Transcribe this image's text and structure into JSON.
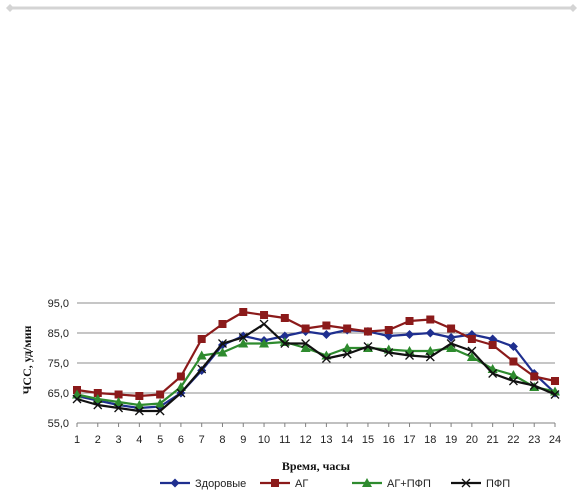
{
  "chart_data": {
    "type": "line",
    "title": "",
    "xlabel": "Время, часы",
    "ylabel": "ЧСС, уд/мин",
    "x": [
      1,
      2,
      3,
      4,
      5,
      6,
      7,
      8,
      9,
      10,
      11,
      12,
      13,
      14,
      15,
      16,
      17,
      18,
      19,
      20,
      21,
      22,
      23,
      24
    ],
    "x_tick_labels": [
      "1",
      "2",
      "3",
      "4",
      "5",
      "6",
      "7",
      "8",
      "9",
      "10",
      "11",
      "12",
      "13",
      "14",
      "15",
      "16",
      "17",
      "18",
      "19",
      "20",
      "21",
      "22",
      "23",
      "24"
    ],
    "y_tick_labels": [
      "95,0",
      "85,0",
      "75,0",
      "65,0",
      "55,0"
    ],
    "y_ticks": [
      95,
      85,
      75,
      65,
      55
    ],
    "ylim": [
      55,
      95
    ],
    "grid": "horizontal",
    "legend_position": "bottom",
    "series": [
      {
        "name": "Здоровые",
        "color": "#1F2F8F",
        "marker": "diamond",
        "values": [
          64,
          62.5,
          61,
          60,
          60.5,
          65,
          72.5,
          81,
          84,
          82.5,
          84,
          85.5,
          84.5,
          86,
          85.5,
          84,
          84.5,
          85,
          83.5,
          84.5,
          83,
          80.5,
          71.5,
          65
        ]
      },
      {
        "name": "АГ",
        "color": "#8B1A1A",
        "marker": "square",
        "values": [
          66,
          65,
          64.5,
          64,
          64.5,
          70.5,
          83,
          88,
          92,
          91,
          90,
          86.5,
          87.5,
          86.5,
          85.5,
          86,
          89,
          89.5,
          86.5,
          83,
          81,
          75.5,
          70.5,
          69
        ]
      },
      {
        "name": "АГ+ПФП",
        "color": "#2E8B2E",
        "marker": "triangle",
        "values": [
          64.5,
          63,
          62,
          61,
          61.5,
          67,
          77.5,
          78.5,
          81.5,
          81.5,
          82,
          80,
          77.5,
          80,
          80,
          79.5,
          79,
          79,
          80,
          77,
          73,
          71,
          67,
          65.5
        ]
      },
      {
        "name": "ПФП",
        "color": "#111111",
        "marker": "x",
        "values": [
          63,
          61,
          60,
          59,
          59,
          65,
          73,
          81.5,
          83.5,
          88,
          81.5,
          81.5,
          76.5,
          78,
          80.5,
          78.5,
          77.5,
          77,
          81.5,
          79,
          71.5,
          69,
          67.5,
          64.5
        ]
      }
    ]
  },
  "colors": {
    "top_rule": "#d4d4d4",
    "grid": "#8c8c8c",
    "axis": "#808080"
  }
}
